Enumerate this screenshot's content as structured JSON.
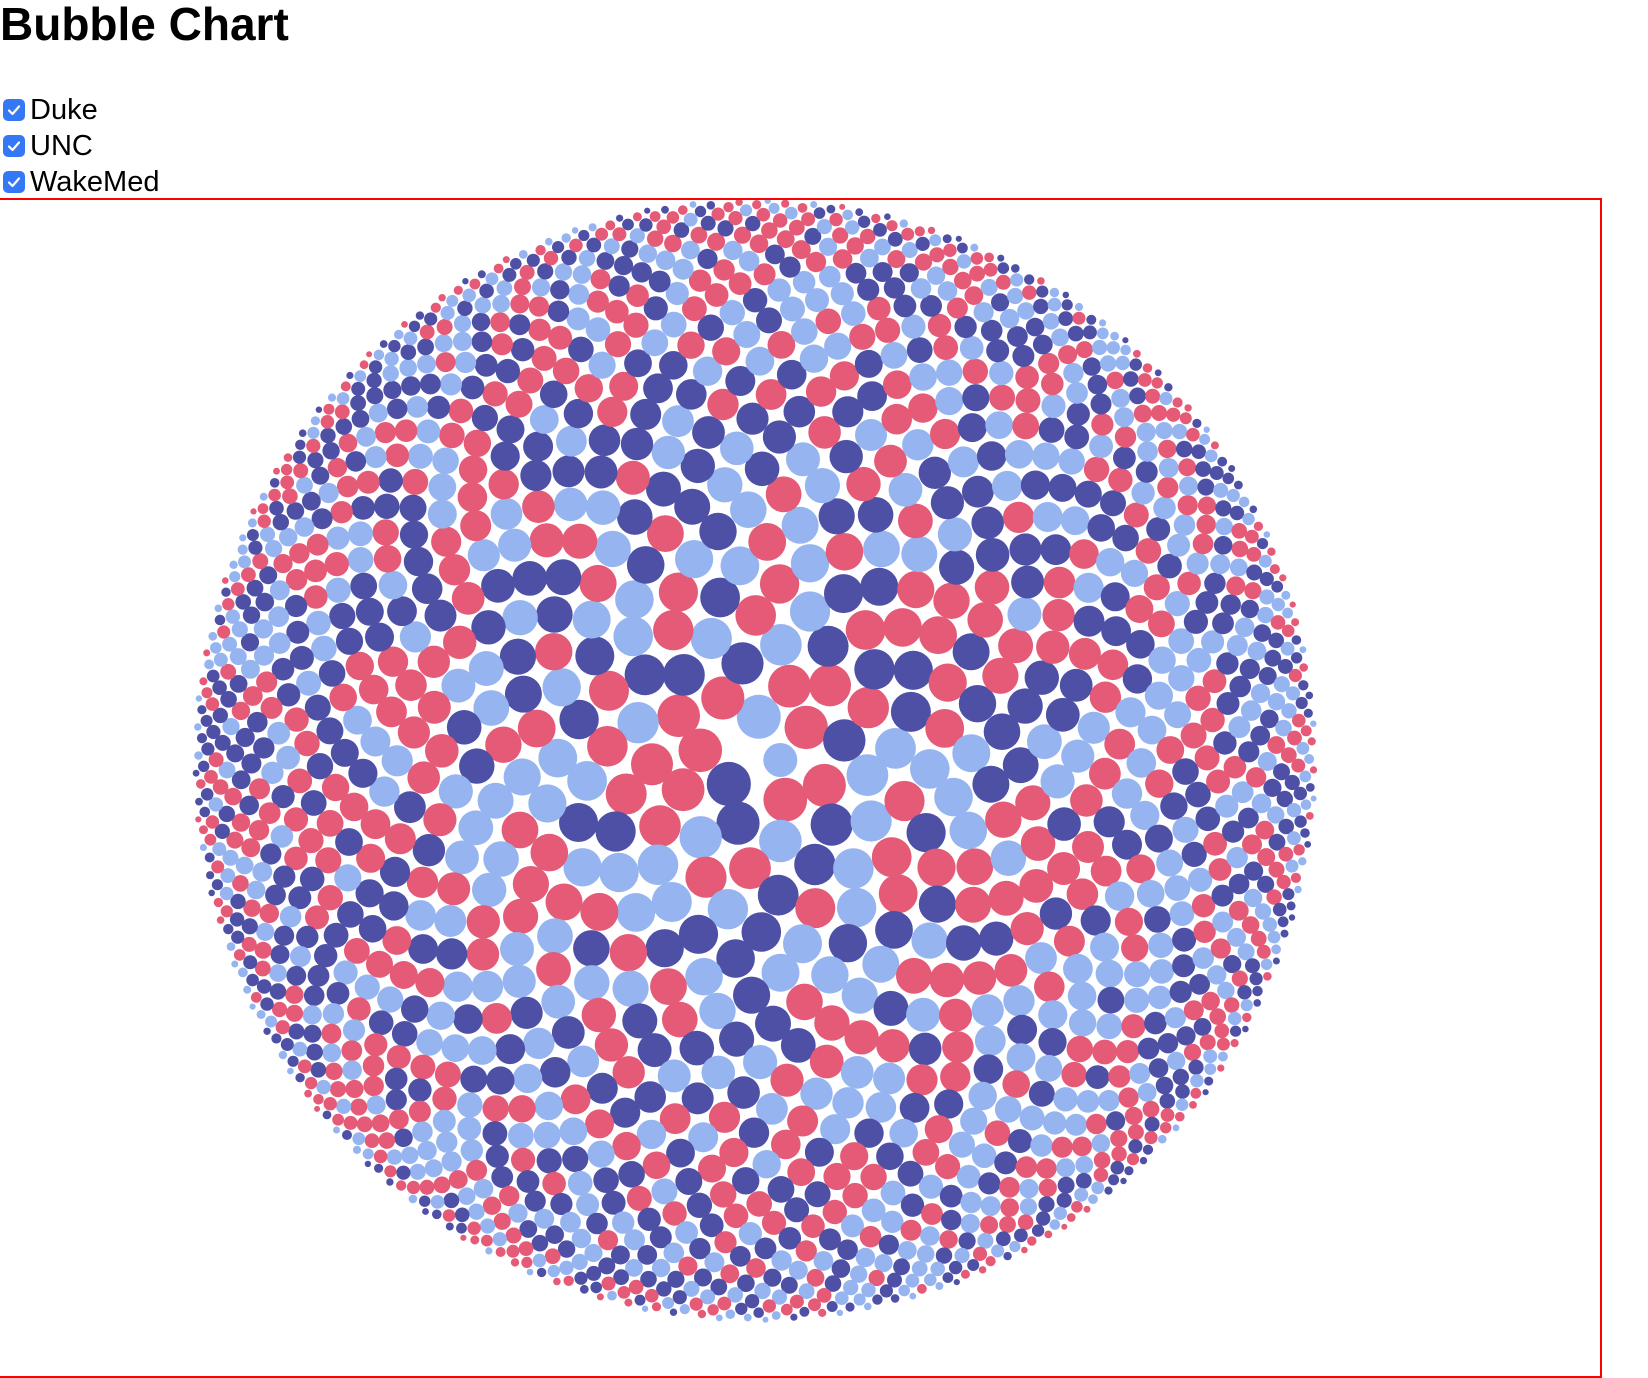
{
  "page": {
    "title": "Bubble Chart"
  },
  "filters": [
    {
      "label": "Duke",
      "checked": true
    },
    {
      "label": "UNC",
      "checked": true
    },
    {
      "label": "WakeMed",
      "checked": true
    }
  ],
  "colors": {
    "checkbox_accent": "#3478f6",
    "frame_border": "#ff0000",
    "series": [
      "#4e50a6",
      "#96b5f0",
      "#e55a76"
    ]
  },
  "chart_data": {
    "type": "bubble",
    "title": "",
    "series": [
      {
        "name": "Duke"
      },
      {
        "name": "UNC"
      },
      {
        "name": "WakeMed"
      }
    ],
    "layout": "packed-circle",
    "bubble_count": 1800,
    "size_range": [
      0.2,
      1.0
    ],
    "color_pattern": "mixed",
    "legend": "none",
    "grid": false,
    "axes": false
  }
}
